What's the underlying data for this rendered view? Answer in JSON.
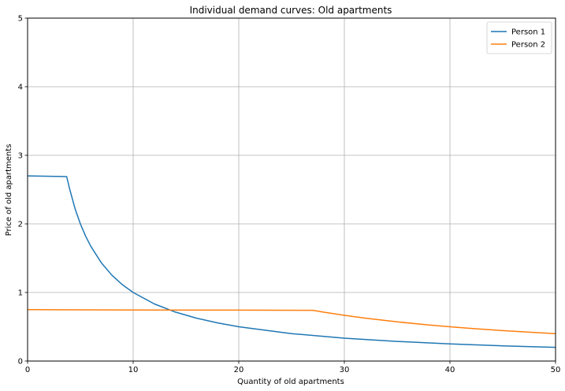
{
  "chart_data": {
    "type": "line",
    "title": "Individual demand curves: Old apartments",
    "xlabel": "Quantity of old apartments",
    "ylabel": "Price of old apartments",
    "xlim": [
      0,
      50
    ],
    "ylim": [
      0,
      5
    ],
    "x_ticks": [
      "0",
      "10",
      "20",
      "30",
      "40",
      "50"
    ],
    "y_ticks": [
      "0",
      "1",
      "2",
      "3",
      "4",
      "5"
    ],
    "grid": true,
    "legend_position": "top-right",
    "series": [
      {
        "name": "Person 1",
        "color": "#1f77b4",
        "points": [
          [
            0,
            2.7
          ],
          [
            3.7,
            2.69
          ],
          [
            4,
            2.5
          ],
          [
            4.5,
            2.22
          ],
          [
            5,
            2.0
          ],
          [
            5.5,
            1.82
          ],
          [
            6,
            1.67
          ],
          [
            7,
            1.43
          ],
          [
            8,
            1.25
          ],
          [
            9,
            1.11
          ],
          [
            10,
            1.0
          ],
          [
            12,
            0.833
          ],
          [
            14,
            0.714
          ],
          [
            16,
            0.625
          ],
          [
            18,
            0.556
          ],
          [
            20,
            0.5
          ],
          [
            25,
            0.4
          ],
          [
            30,
            0.333
          ],
          [
            35,
            0.286
          ],
          [
            40,
            0.25
          ],
          [
            45,
            0.222
          ],
          [
            50,
            0.2
          ]
        ]
      },
      {
        "name": "Person 2",
        "color": "#ff7f0e",
        "points": [
          [
            0,
            0.75
          ],
          [
            10,
            0.745
          ],
          [
            20,
            0.742
          ],
          [
            27,
            0.74
          ],
          [
            28,
            0.714
          ],
          [
            30,
            0.667
          ],
          [
            32,
            0.625
          ],
          [
            35,
            0.571
          ],
          [
            38,
            0.526
          ],
          [
            40,
            0.5
          ],
          [
            42,
            0.476
          ],
          [
            45,
            0.444
          ],
          [
            48,
            0.417
          ],
          [
            50,
            0.4
          ]
        ]
      }
    ]
  }
}
